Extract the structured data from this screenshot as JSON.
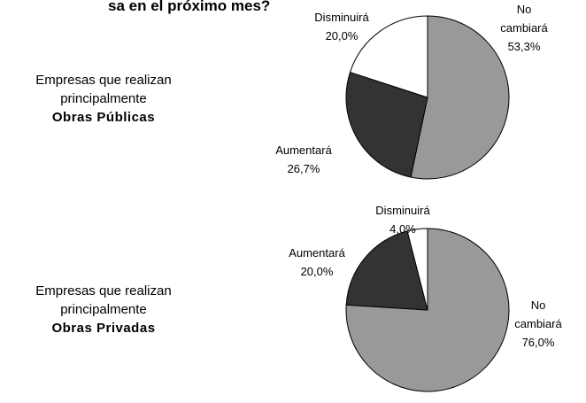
{
  "title": "sa en el próximo mes?",
  "chart_data": [
    {
      "type": "pie",
      "caption": "Empresas que realizan principalmente",
      "title": "Obras Públicas",
      "categories": [
        "No cambiará",
        "Aumentará",
        "Disminuirá"
      ],
      "values": [
        53.3,
        26.7,
        20.0
      ],
      "value_labels": [
        "53,3%",
        "26,7%",
        "20,0%"
      ],
      "colors": [
        "#999999",
        "#333333",
        "#ffffff"
      ]
    },
    {
      "type": "pie",
      "caption": "Empresas que realizan principalmente",
      "title": "Obras Privadas",
      "categories": [
        "No cambiará",
        "Aumentará",
        "Disminuirá"
      ],
      "values": [
        76.0,
        20.0,
        4.0
      ],
      "value_labels": [
        "76,0%",
        "20,0%",
        "4,0%"
      ],
      "colors": [
        "#999999",
        "#333333",
        "#ffffff"
      ]
    }
  ]
}
